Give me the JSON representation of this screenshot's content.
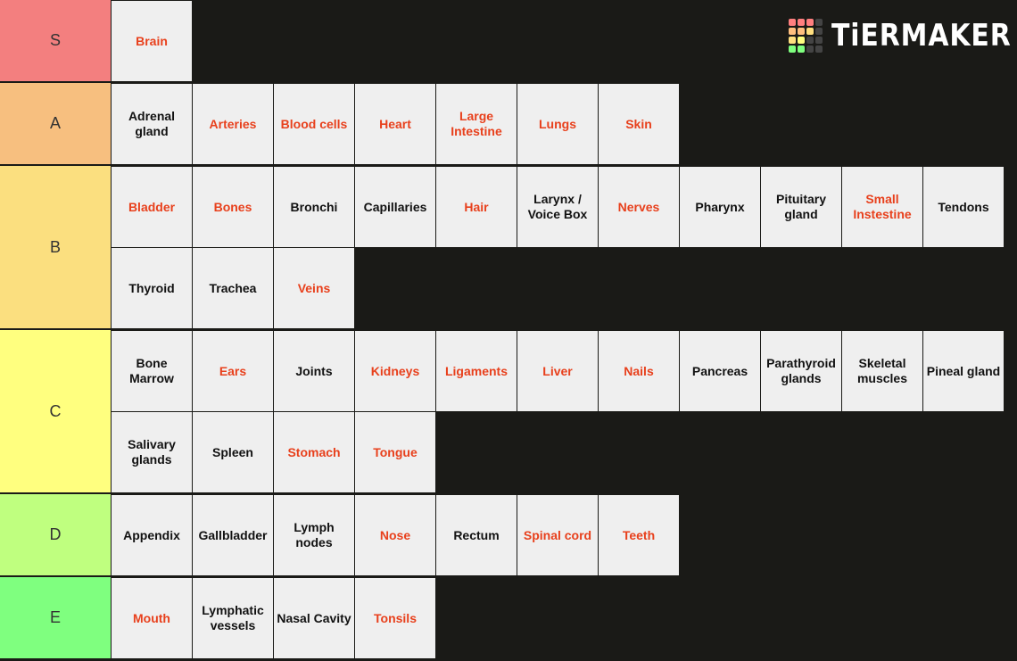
{
  "logo": {
    "text": "TiERMAKER",
    "icon": "tiermaker-grid-icon"
  },
  "colors": {
    "background": "#1a1a17",
    "item_background": "#efefef",
    "item_text_red": "#e8401c",
    "item_text_black": "#111111"
  },
  "tiers": [
    {
      "label": "S",
      "color": "#f37f7f",
      "items": [
        {
          "name": "Brain",
          "red": true
        }
      ]
    },
    {
      "label": "A",
      "color": "#f7bf7f",
      "items": [
        {
          "name": "Adrenal gland",
          "red": false
        },
        {
          "name": "Arteries",
          "red": true
        },
        {
          "name": "Blood cells",
          "red": true
        },
        {
          "name": "Heart",
          "red": true
        },
        {
          "name": "Large Intestine",
          "red": true
        },
        {
          "name": "Lungs",
          "red": true
        },
        {
          "name": "Skin",
          "red": true
        }
      ]
    },
    {
      "label": "B",
      "color": "#fbdf7f",
      "items": [
        {
          "name": "Bladder",
          "red": true
        },
        {
          "name": "Bones",
          "red": true
        },
        {
          "name": "Bronchi",
          "red": false
        },
        {
          "name": "Capillaries",
          "red": false
        },
        {
          "name": "Hair",
          "red": true
        },
        {
          "name": "Larynx / Voice Box",
          "red": false
        },
        {
          "name": "Nerves",
          "red": true
        },
        {
          "name": "Pharynx",
          "red": false
        },
        {
          "name": "Pituitary gland",
          "red": false
        },
        {
          "name": "Small Instestine",
          "red": true
        },
        {
          "name": "Tendons",
          "red": false
        },
        {
          "name": "Thyroid",
          "red": false
        },
        {
          "name": "Trachea",
          "red": false
        },
        {
          "name": "Veins",
          "red": true
        }
      ]
    },
    {
      "label": "C",
      "color": "#ffff7f",
      "items": [
        {
          "name": "Bone Marrow",
          "red": false
        },
        {
          "name": "Ears",
          "red": true
        },
        {
          "name": "Joints",
          "red": false
        },
        {
          "name": "Kidneys",
          "red": true
        },
        {
          "name": "Ligaments",
          "red": true
        },
        {
          "name": "Liver",
          "red": true
        },
        {
          "name": "Nails",
          "red": true
        },
        {
          "name": "Pancreas",
          "red": false
        },
        {
          "name": "Parathyroid glands",
          "red": false
        },
        {
          "name": "Skeletal muscles",
          "red": false
        },
        {
          "name": "Pineal gland",
          "red": false
        },
        {
          "name": "Salivary glands",
          "red": false
        },
        {
          "name": "Spleen",
          "red": false
        },
        {
          "name": "Stomach",
          "red": true
        },
        {
          "name": "Tongue",
          "red": true
        }
      ]
    },
    {
      "label": "D",
      "color": "#bfff7f",
      "items": [
        {
          "name": "Appendix",
          "red": false
        },
        {
          "name": "Gallbladder",
          "red": false
        },
        {
          "name": "Lymph nodes",
          "red": false
        },
        {
          "name": "Nose",
          "red": true
        },
        {
          "name": "Rectum",
          "red": false
        },
        {
          "name": "Spinal cord",
          "red": true
        },
        {
          "name": "Teeth",
          "red": true
        }
      ]
    },
    {
      "label": "E",
      "color": "#7fff7f",
      "items": [
        {
          "name": "Mouth",
          "red": true
        },
        {
          "name": "Lymphatic vessels",
          "red": false
        },
        {
          "name": "Nasal Cavity",
          "red": false
        },
        {
          "name": "Tonsils",
          "red": true
        }
      ]
    }
  ]
}
